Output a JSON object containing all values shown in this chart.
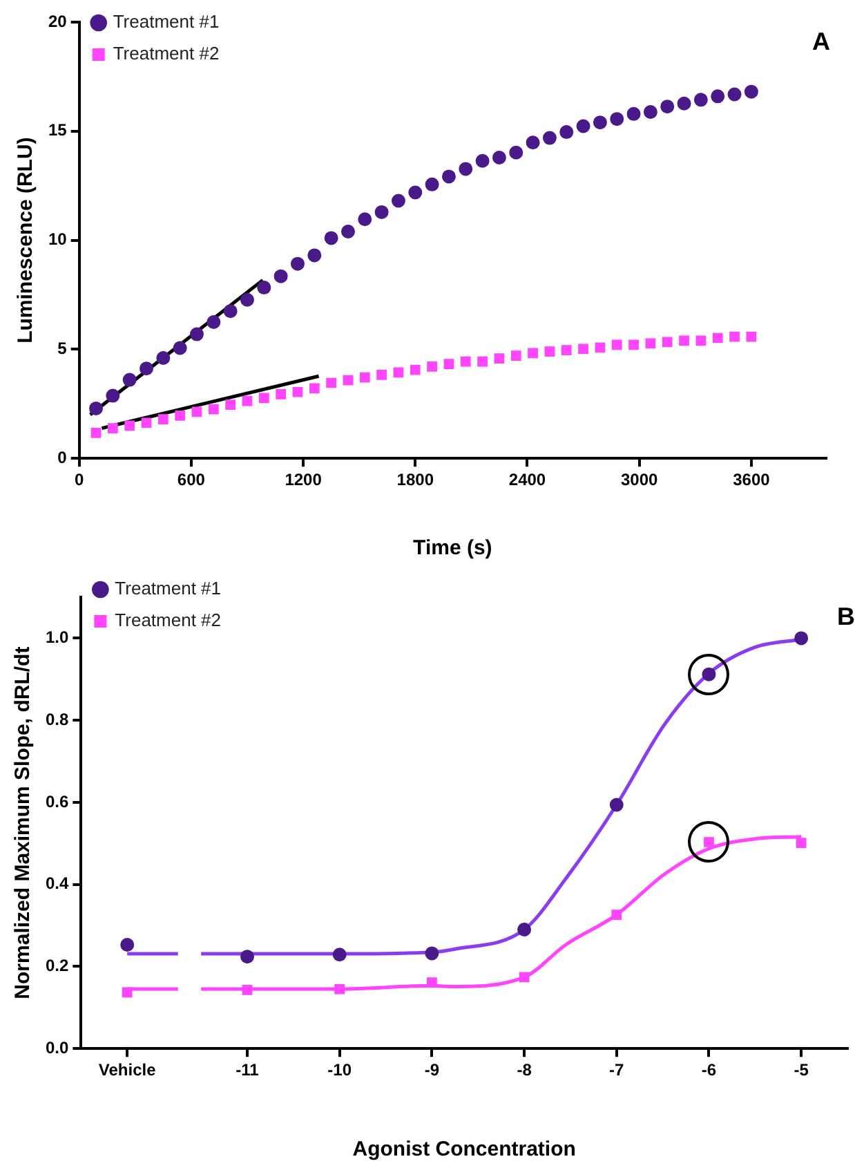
{
  "chart_data": [
    {
      "type": "scatter",
      "xlabel": "Time (s)",
      "ylabel": "Luminescence (RLU)",
      "annotations": [
        "A"
      ],
      "legend": "top left",
      "grid": false,
      "xlim": [
        0,
        4000
      ],
      "xticks": [
        0,
        600,
        1200,
        1800,
        2400,
        3000,
        3600
      ],
      "ylim": [
        0,
        20
      ],
      "yticks": [
        0,
        5,
        10,
        15,
        20
      ],
      "x": [
        90,
        180,
        270,
        360,
        450,
        540,
        630,
        720,
        810,
        900,
        990,
        1080,
        1170,
        1260,
        1350,
        1440,
        1530,
        1620,
        1710,
        1800,
        1890,
        1980,
        2070,
        2160,
        2250,
        2340,
        2430,
        2520,
        2610,
        2700,
        2790,
        2880,
        2970,
        3060,
        3150,
        3240,
        3330,
        3420,
        3510,
        3600
      ],
      "series": [
        {
          "name": "Treatment #1",
          "type": "scatter",
          "marker": "circle",
          "color": "#4b1a8a",
          "values": [
            2.29,
            2.87,
            3.6,
            4.12,
            4.6,
            5.06,
            5.69,
            6.25,
            6.75,
            7.27,
            7.83,
            8.35,
            8.92,
            9.31,
            10.1,
            10.4,
            10.96,
            11.29,
            11.81,
            12.19,
            12.56,
            12.92,
            13.27,
            13.64,
            13.79,
            14.02,
            14.48,
            14.69,
            14.96,
            15.23,
            15.4,
            15.56,
            15.79,
            15.88,
            16.13,
            16.27,
            16.44,
            16.6,
            16.69,
            16.81
          ]
        },
        {
          "name": "Treatment #2",
          "type": "scatter",
          "marker": "square",
          "color": "#ff44ff",
          "values": [
            1.17,
            1.38,
            1.5,
            1.63,
            1.79,
            1.96,
            2.13,
            2.25,
            2.46,
            2.63,
            2.77,
            2.94,
            3.04,
            3.21,
            3.46,
            3.58,
            3.71,
            3.83,
            3.94,
            4.06,
            4.21,
            4.33,
            4.44,
            4.44,
            4.58,
            4.71,
            4.83,
            4.9,
            4.96,
            5.02,
            5.08,
            5.21,
            5.21,
            5.27,
            5.33,
            5.4,
            5.4,
            5.52,
            5.58,
            5.58
          ]
        },
        {
          "type": "line",
          "marker": "none",
          "color": "#000000",
          "x": [
            59,
            983
          ],
          "values": [
            2.0,
            8.17
          ]
        },
        {
          "type": "line",
          "marker": "none",
          "color": "#000000",
          "x": [
            121,
            1283
          ],
          "values": [
            1.38,
            3.77
          ]
        }
      ]
    },
    {
      "type": "scatter",
      "xlabel": "Agonist Concentration",
      "ylabel": "Normalized Maximum Slope, dRL/dt",
      "annotations": [
        "B"
      ],
      "legend": "top left",
      "grid": false,
      "xlim": [
        -12.8,
        -4.5
      ],
      "xticks": [
        {
          "value": -12.3,
          "label": "Vehicle"
        },
        -11,
        -10,
        -9,
        -8,
        -7,
        -6,
        -5
      ],
      "ylim": [
        0,
        1.1
      ],
      "yticks": [
        {
          "value": 0,
          "label": "0.0"
        },
        0.2,
        0.4,
        0.6,
        0.8,
        {
          "value": 1,
          "label": "1.0"
        }
      ],
      "x": [
        -12.3,
        -11,
        -10,
        -9,
        -8,
        -7,
        -6,
        -5
      ],
      "series": [
        {
          "name": "Treatment #1",
          "type": "scatter",
          "marker": "circle",
          "color": "#4b1a8a",
          "values": [
            0.253,
            0.224,
            0.229,
            0.232,
            0.29,
            0.594,
            0.912,
            1.0
          ]
        },
        {
          "name": "Treatment #2",
          "type": "scatter",
          "marker": "square",
          "color": "#ff44ff",
          "values": [
            0.137,
            0.143,
            0.145,
            0.161,
            0.174,
            0.326,
            0.503,
            0.501
          ]
        },
        {
          "type": "line",
          "marker": "none",
          "color": "#8a3cf0",
          "x": [
            -12.3,
            -11.75,
            -11.6,
            -11.5,
            -11,
            -10,
            -9,
            -8.76,
            -8,
            -7.55,
            -7,
            -6.48,
            -6,
            -5.5,
            -5
          ],
          "values": [
            0.231,
            0.231,
            null,
            0.231,
            0.231,
            0.231,
            0.235,
            0.242,
            0.29,
            0.414,
            0.594,
            0.79,
            0.914,
            0.978,
            0.997
          ]
        },
        {
          "type": "line",
          "marker": "none",
          "color": "#ff44ff",
          "x": [
            -12.3,
            -11.75,
            -11.6,
            -11.5,
            -11,
            -10,
            -9,
            -8.76,
            -8,
            -7.55,
            -7,
            -6.48,
            -6,
            -5.5,
            -5
          ],
          "values": [
            0.145,
            0.145,
            null,
            0.145,
            0.145,
            0.145,
            0.153,
            0.151,
            0.174,
            0.253,
            0.326,
            0.425,
            0.487,
            0.511,
            0.516
          ]
        }
      ]
    }
  ]
}
